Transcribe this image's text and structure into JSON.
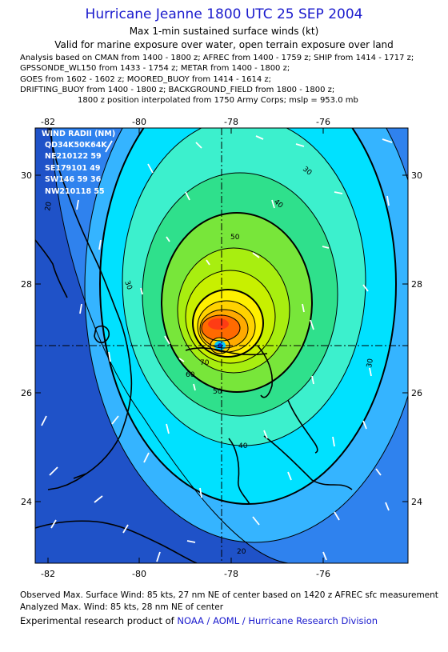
{
  "title": "Hurricane Jeanne 1800 UTC 25 SEP 2004",
  "subtitle": "Max 1-min sustained surface winds (kt)",
  "valid_line": "Valid for marine exposure over water, open terrain exposure over land",
  "analysis_lines": [
    "Analysis based on  CMAN from 1400 - 1800 z;  AFREC from 1400 - 1759 z;  SHIP from 1414 - 1717 z;",
    "GPSSONDE_WL150 from 1433 - 1754 z;  METAR from 1400 - 1800 z;",
    "GOES from 1602 - 1602 z;  MOORED_BUOY from 1414 - 1614 z;",
    "DRIFTING_BUOY from 1400 - 1800 z;  BACKGROUND_FIELD from 1800 - 1800 z;",
    "1800 z position interpolated from 1750 Army Corps; mslp = 953.0 mb"
  ],
  "map": {
    "lon_ticks": [
      "-82",
      "-80",
      "-78",
      "-76"
    ],
    "lat_ticks": [
      "30",
      "28",
      "26",
      "24"
    ],
    "wind_radii": {
      "header": "WIND RADII (NM)",
      "columns": "QD34K50K64K",
      "rows": [
        "NE210122 59",
        "SE179101 49",
        "SW146 59 36",
        "NW210118 55"
      ]
    },
    "contour_labels": [
      "20",
      "20",
      "30",
      "30",
      "30",
      "40",
      "40",
      "50",
      "50",
      "60",
      "70"
    ],
    "colors": {
      "deep_blue": "#1f52c8",
      "blue": "#2f82ee",
      "light_blue": "#35b4ff",
      "cyan": "#00e1ff",
      "aqua": "#3cf0cd",
      "green": "#2fe08c",
      "lime": "#78e63a",
      "yellow_green": "#c8f000",
      "yellow": "#fff000",
      "orange": "#ffaa00",
      "orange_red": "#ff6a00",
      "red": "#ff3c14",
      "title_blue": "#1a1acd"
    }
  },
  "footer": {
    "observed": "Observed Max. Surface Wind: 85 kts, 27 nm NE of center based on 1420 z AFREC sfc measurement",
    "analyzed": "Analyzed Max. Wind: 85 kts, 28 nm NE of center",
    "product_prefix": "Experimental research product of ",
    "product_link": "NOAA / AOML / Hurricane Research Division"
  }
}
